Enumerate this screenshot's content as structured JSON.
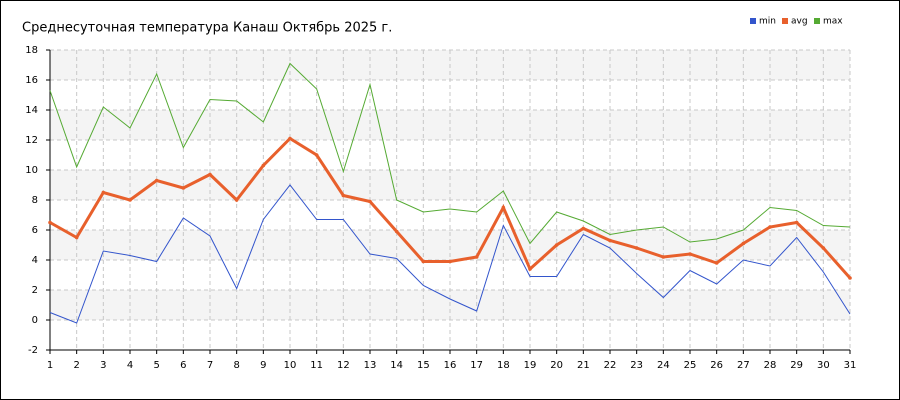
{
  "chart_data": {
    "type": "line",
    "title": "Среднесуточная температура Канаш  Октябрь 2025 г.",
    "x": [
      1,
      2,
      3,
      4,
      5,
      6,
      7,
      8,
      9,
      10,
      11,
      12,
      13,
      14,
      15,
      16,
      17,
      18,
      19,
      20,
      21,
      22,
      23,
      24,
      25,
      26,
      27,
      28,
      29,
      30,
      31
    ],
    "xlim": [
      1,
      31
    ],
    "xticks": [
      1,
      2,
      3,
      4,
      5,
      6,
      7,
      8,
      9,
      10,
      11,
      12,
      13,
      14,
      15,
      16,
      17,
      18,
      19,
      20,
      21,
      22,
      23,
      24,
      25,
      26,
      27,
      28,
      29,
      30,
      31
    ],
    "ylim": [
      -2,
      18
    ],
    "yticks": [
      -2,
      0,
      2,
      4,
      6,
      8,
      10,
      12,
      14,
      16,
      18
    ],
    "grid": true,
    "legend": "top-right",
    "series": [
      {
        "name": "min",
        "color": "#3355cc",
        "values": [
          0.5,
          -0.2,
          4.6,
          4.3,
          3.9,
          6.8,
          5.6,
          2.1,
          6.7,
          9.0,
          6.7,
          6.7,
          4.4,
          4.1,
          2.3,
          1.4,
          0.6,
          6.3,
          2.9,
          2.9,
          5.7,
          4.8,
          3.1,
          1.5,
          3.3,
          2.4,
          4.0,
          3.6,
          5.5,
          3.2,
          0.4
        ]
      },
      {
        "name": "avg",
        "color": "#e8602c",
        "values": [
          6.5,
          5.5,
          8.5,
          8.0,
          9.3,
          8.8,
          9.7,
          8.0,
          10.3,
          12.1,
          11.0,
          8.3,
          7.9,
          5.9,
          3.9,
          3.9,
          4.2,
          7.5,
          3.4,
          5.0,
          6.1,
          5.3,
          4.8,
          4.2,
          4.4,
          3.8,
          5.1,
          6.2,
          6.5,
          4.8,
          2.8
        ]
      },
      {
        "name": "max",
        "color": "#55aa33",
        "values": [
          15.3,
          10.2,
          14.2,
          12.8,
          16.4,
          11.5,
          14.7,
          14.6,
          13.2,
          17.1,
          15.4,
          9.9,
          15.7,
          8.0,
          7.2,
          7.4,
          7.2,
          8.6,
          5.1,
          7.2,
          6.6,
          5.7,
          6.0,
          6.2,
          5.2,
          5.4,
          6.0,
          7.5,
          7.3,
          6.3,
          6.2
        ]
      }
    ]
  }
}
